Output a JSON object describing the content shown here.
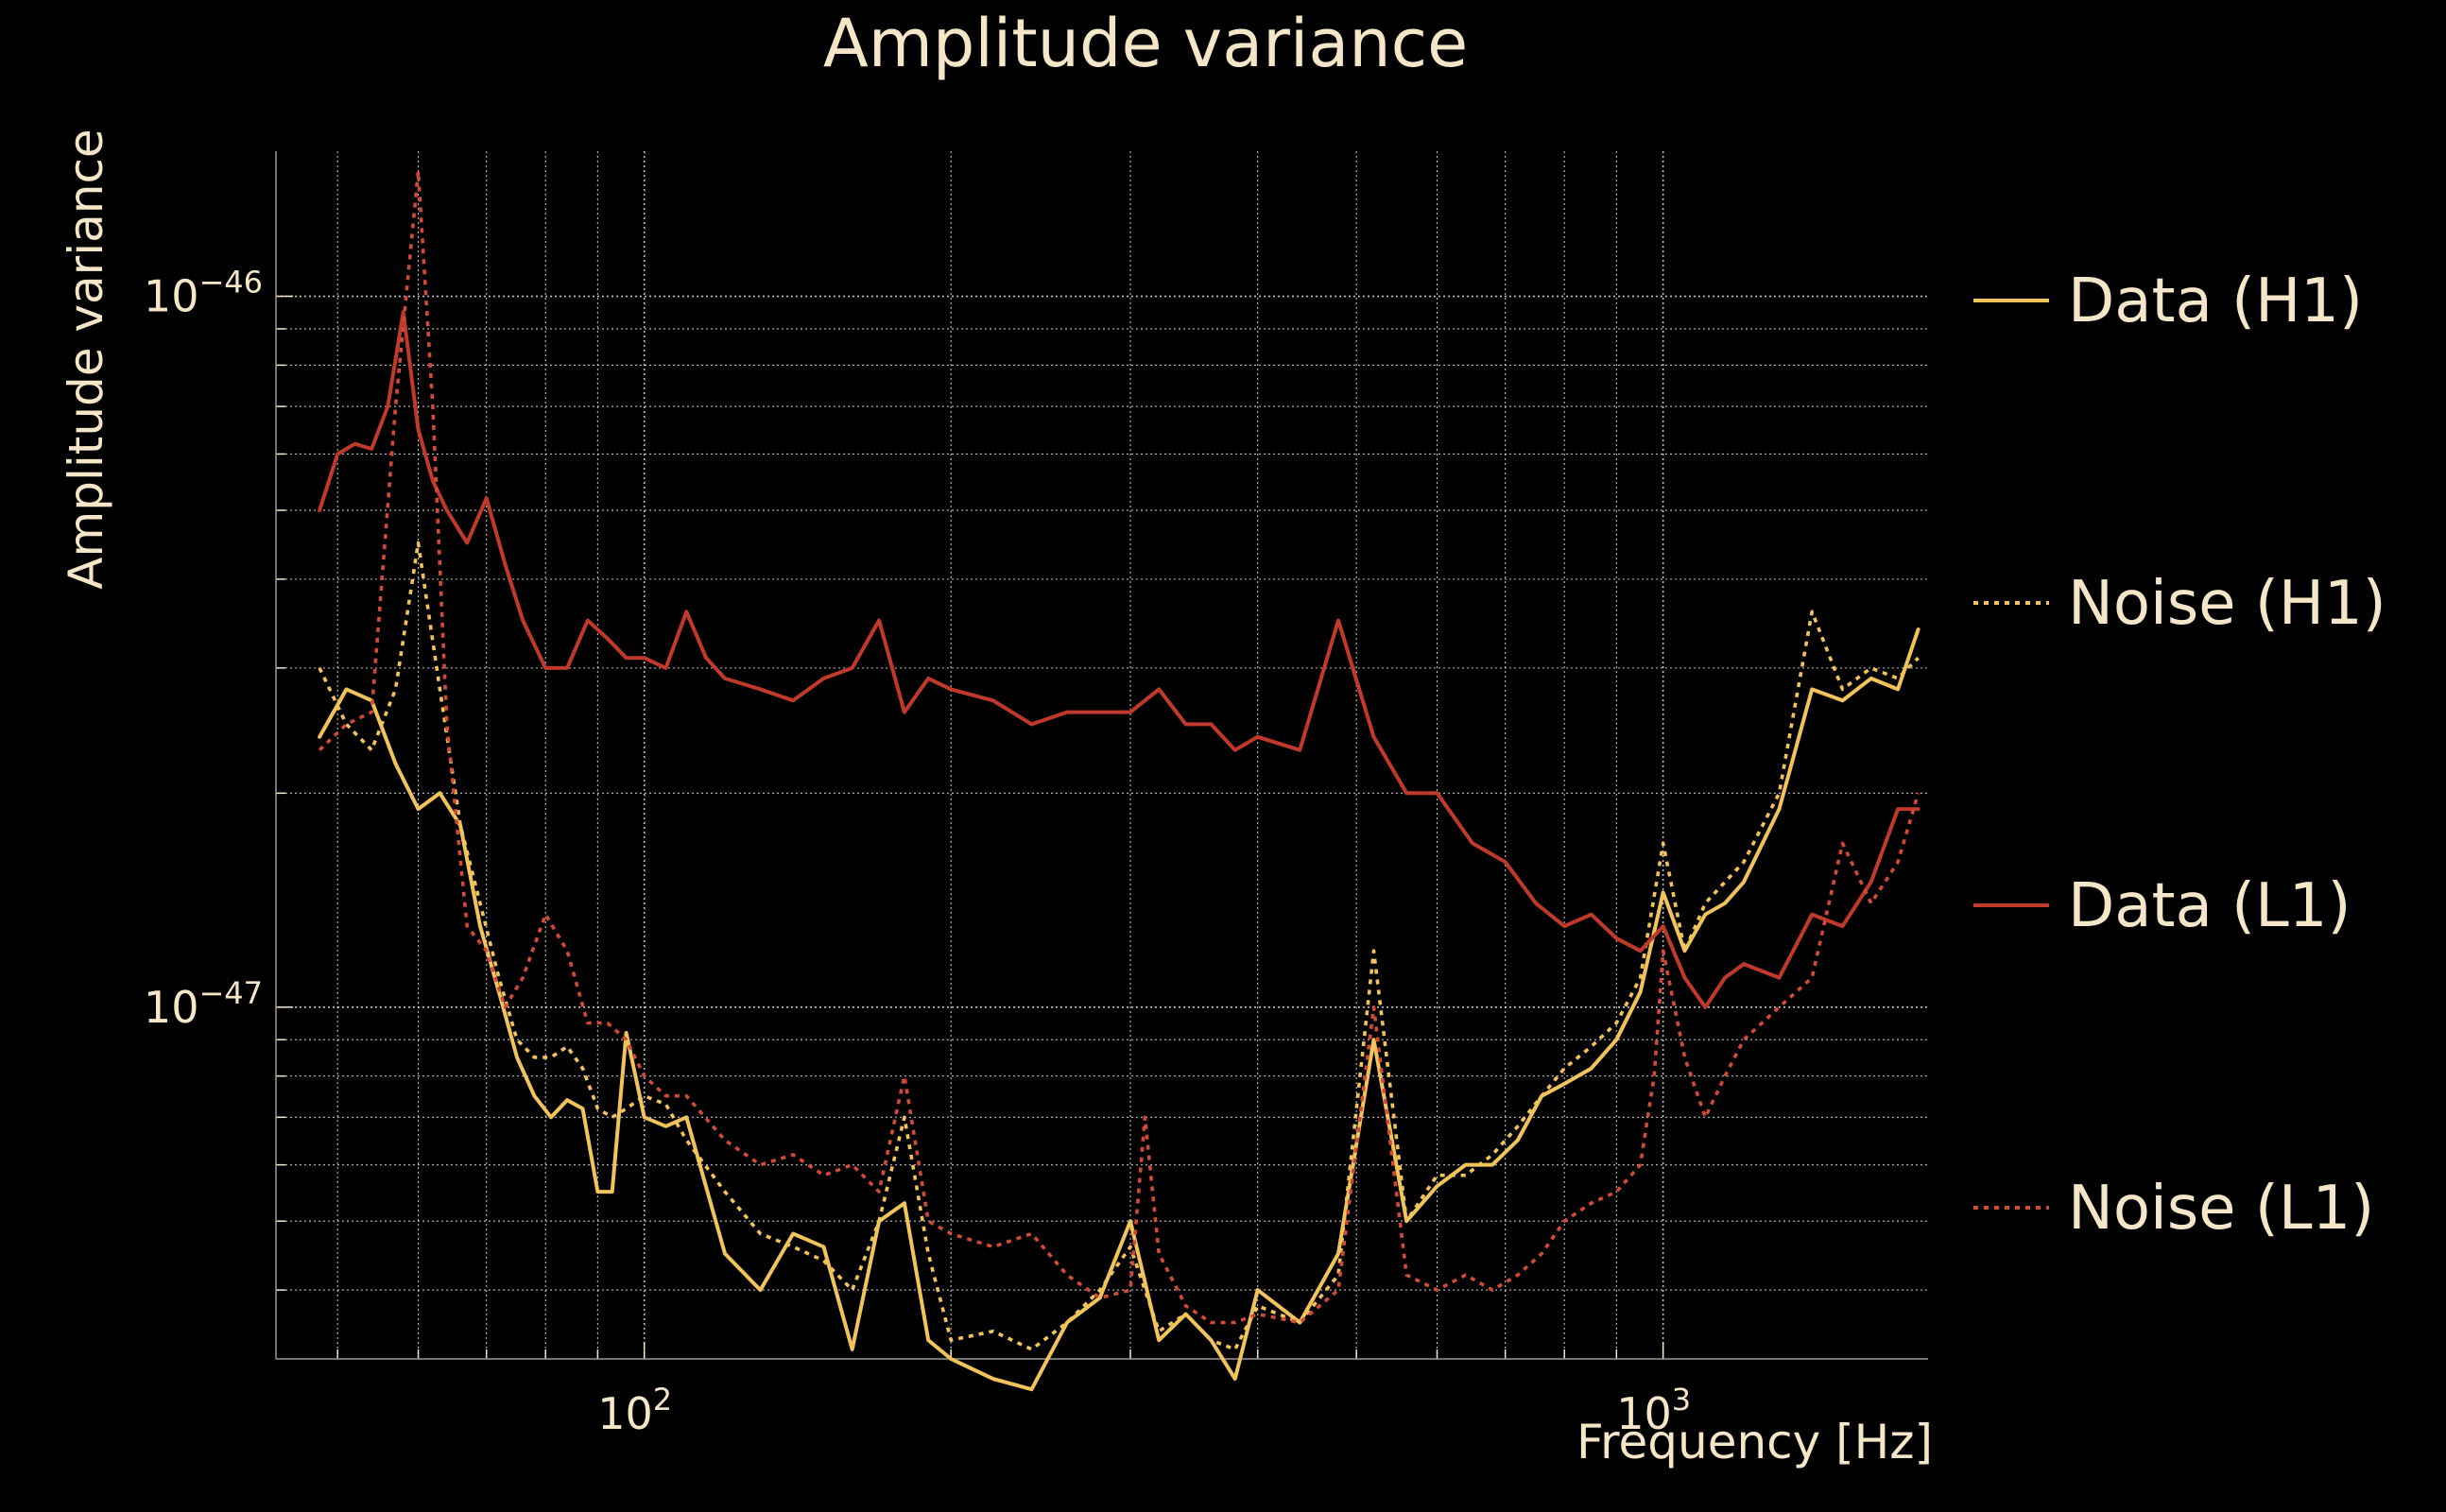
{
  "chart_data": {
    "type": "line",
    "title": "Amplitude variance",
    "xlabel": "Frequency [Hz]",
    "ylabel": "Amplitude variance",
    "xscale": "log",
    "yscale": "log",
    "xlim": [
      43.5,
      1820
    ],
    "ylim": [
      3.2e-48,
      1.6e-46
    ],
    "grid": true,
    "legend_position": "right",
    "x_ticks": [
      {
        "base": "10",
        "exp": "2",
        "value": 100
      },
      {
        "base": "10",
        "exp": "3",
        "value": 1000
      }
    ],
    "y_ticks": [
      {
        "base": "10",
        "exp": "−47",
        "value": 1e-47
      },
      {
        "base": "10",
        "exp": "−46",
        "value": 1e-46
      }
    ],
    "series": [
      {
        "name": "Data (H1)",
        "color": "#f0c45a",
        "style": "solid",
        "x": [
          48,
          51,
          54,
          57,
          60,
          63,
          66,
          69,
          72,
          75,
          78,
          81,
          84,
          87,
          90,
          93,
          96,
          100,
          105,
          110,
          120,
          130,
          140,
          150,
          160,
          170,
          180,
          190,
          200,
          220,
          240,
          260,
          280,
          300,
          320,
          340,
          360,
          380,
          400,
          440,
          480,
          520,
          560,
          600,
          640,
          680,
          720,
          760,
          800,
          850,
          900,
          950,
          1000,
          1050,
          1100,
          1150,
          1200,
          1300,
          1400,
          1500,
          1600,
          1700,
          1780
        ],
        "y": [
          2.4e-47,
          2.8e-47,
          2.7e-47,
          2.2e-47,
          1.9e-47,
          2e-47,
          1.8e-47,
          1.3e-47,
          1.05e-47,
          8.5e-48,
          7.5e-48,
          7e-48,
          7.4e-48,
          7.2e-48,
          5.5e-48,
          5.5e-48,
          9.2e-48,
          7e-48,
          6.8e-48,
          7e-48,
          4.5e-48,
          4e-48,
          4.8e-48,
          4.6e-48,
          3.3e-48,
          5e-48,
          5.3e-48,
          3.4e-48,
          3.2e-48,
          3e-48,
          2.9e-48,
          3.6e-48,
          3.9e-48,
          5e-48,
          3.4e-48,
          3.7e-48,
          3.4e-48,
          3e-48,
          4e-48,
          3.6e-48,
          4.5e-48,
          9e-48,
          5e-48,
          5.6e-48,
          6e-48,
          6e-48,
          6.5e-48,
          7.5e-48,
          7.8e-48,
          8.2e-48,
          9e-48,
          1.05e-47,
          1.45e-47,
          1.2e-47,
          1.35e-47,
          1.4e-47,
          1.5e-47,
          1.9e-47,
          2.8e-47,
          2.7e-47,
          2.9e-47,
          2.8e-47,
          3.4e-47
        ]
      },
      {
        "name": "Noise (H1)",
        "color": "#f0c45a",
        "style": "dotted",
        "x": [
          48,
          51,
          54,
          57,
          60,
          63,
          66,
          69,
          72,
          75,
          78,
          81,
          84,
          87,
          90,
          93,
          96,
          100,
          105,
          110,
          120,
          130,
          140,
          150,
          160,
          170,
          180,
          190,
          200,
          220,
          240,
          260,
          280,
          300,
          320,
          340,
          360,
          380,
          400,
          440,
          480,
          520,
          560,
          600,
          640,
          680,
          720,
          760,
          800,
          850,
          900,
          950,
          1000,
          1050,
          1100,
          1150,
          1200,
          1300,
          1400,
          1500,
          1600,
          1700,
          1780
        ],
        "y": [
          3e-47,
          2.5e-47,
          2.3e-47,
          2.8e-47,
          4.5e-47,
          2.8e-47,
          1.8e-47,
          1.4e-47,
          1.1e-47,
          9e-48,
          8.5e-48,
          8.5e-48,
          8.8e-48,
          8.2e-48,
          7.2e-48,
          7e-48,
          7.2e-48,
          7.5e-48,
          7.3e-48,
          6.5e-48,
          5.5e-48,
          4.8e-48,
          4.6e-48,
          4.4e-48,
          4e-48,
          5e-48,
          7e-48,
          4.5e-48,
          3.4e-48,
          3.5e-48,
          3.3e-48,
          3.6e-48,
          4e-48,
          4.6e-48,
          3.5e-48,
          3.7e-48,
          3.4e-48,
          3.3e-48,
          3.8e-48,
          3.6e-48,
          4.2e-48,
          1.2e-47,
          5e-48,
          5.8e-48,
          5.8e-48,
          6.2e-48,
          6.8e-48,
          7.5e-48,
          8.2e-48,
          8.8e-48,
          9.5e-48,
          1.1e-47,
          1.7e-47,
          1.2e-47,
          1.4e-47,
          1.5e-47,
          1.6e-47,
          2e-47,
          3.6e-47,
          2.8e-47,
          3e-47,
          2.9e-47,
          3.1e-47
        ]
      },
      {
        "name": "Data (L1)",
        "color": "#c0392b",
        "style": "solid",
        "x": [
          48,
          50,
          52,
          54,
          56,
          58,
          60,
          62,
          64,
          67,
          70,
          73,
          76,
          80,
          84,
          88,
          92,
          96,
          100,
          105,
          110,
          115,
          120,
          130,
          140,
          150,
          160,
          170,
          180,
          190,
          200,
          220,
          240,
          260,
          280,
          300,
          320,
          340,
          360,
          380,
          400,
          440,
          480,
          520,
          560,
          600,
          650,
          700,
          750,
          800,
          850,
          900,
          950,
          1000,
          1050,
          1100,
          1150,
          1200,
          1300,
          1400,
          1500,
          1600,
          1700,
          1780
        ],
        "y": [
          5e-47,
          6e-47,
          6.2e-47,
          6.1e-47,
          7e-47,
          9.5e-47,
          6.5e-47,
          5.5e-47,
          5e-47,
          4.5e-47,
          5.2e-47,
          4.2e-47,
          3.5e-47,
          3e-47,
          3e-47,
          3.5e-47,
          3.3e-47,
          3.1e-47,
          3.1e-47,
          3e-47,
          3.6e-47,
          3.1e-47,
          2.9e-47,
          2.8e-47,
          2.7e-47,
          2.9e-47,
          3e-47,
          3.5e-47,
          2.6e-47,
          2.9e-47,
          2.8e-47,
          2.7e-47,
          2.5e-47,
          2.6e-47,
          2.6e-47,
          2.6e-47,
          2.8e-47,
          2.5e-47,
          2.5e-47,
          2.3e-47,
          2.4e-47,
          2.3e-47,
          3.5e-47,
          2.4e-47,
          2e-47,
          2e-47,
          1.7e-47,
          1.6e-47,
          1.4e-47,
          1.3e-47,
          1.35e-47,
          1.25e-47,
          1.2e-47,
          1.3e-47,
          1.1e-47,
          1e-47,
          1.1e-47,
          1.15e-47,
          1.1e-47,
          1.35e-47,
          1.3e-47,
          1.5e-47,
          1.9e-47,
          1.9e-47
        ]
      },
      {
        "name": "Noise (L1)",
        "color": "#d04a3a",
        "style": "dotted",
        "x": [
          48,
          51,
          54,
          57,
          60,
          62,
          64,
          67,
          70,
          73,
          76,
          80,
          84,
          88,
          92,
          96,
          100,
          105,
          110,
          120,
          130,
          140,
          150,
          160,
          170,
          180,
          190,
          200,
          220,
          240,
          260,
          280,
          300,
          310,
          320,
          340,
          360,
          380,
          400,
          440,
          480,
          520,
          560,
          600,
          640,
          680,
          720,
          760,
          800,
          850,
          900,
          950,
          980,
          1000,
          1050,
          1100,
          1150,
          1200,
          1300,
          1400,
          1500,
          1600,
          1700,
          1780
        ],
        "y": [
          2.3e-47,
          2.5e-47,
          2.6e-47,
          7e-47,
          1.5e-46,
          7e-47,
          2.5e-47,
          1.3e-47,
          1.2e-47,
          1e-47,
          1.1e-47,
          1.35e-47,
          1.2e-47,
          9.5e-48,
          9.5e-48,
          9e-48,
          8e-48,
          7.5e-48,
          7.5e-48,
          6.5e-48,
          6e-48,
          6.2e-48,
          5.8e-48,
          6e-48,
          5.5e-48,
          8e-48,
          5e-48,
          4.8e-48,
          4.6e-48,
          4.8e-48,
          4.2e-48,
          3.9e-48,
          4e-48,
          7e-48,
          4.5e-48,
          3.8e-48,
          3.6e-48,
          3.6e-48,
          3.7e-48,
          3.6e-48,
          4e-48,
          1e-47,
          4.2e-48,
          4e-48,
          4.2e-48,
          4e-48,
          4.2e-48,
          4.5e-48,
          5e-48,
          5.3e-48,
          5.5e-48,
          6e-48,
          8e-48,
          1.2e-47,
          8.5e-48,
          7e-48,
          8e-48,
          9e-48,
          1e-47,
          1.1e-47,
          1.7e-47,
          1.4e-47,
          1.6e-47,
          2e-47
        ]
      }
    ]
  }
}
